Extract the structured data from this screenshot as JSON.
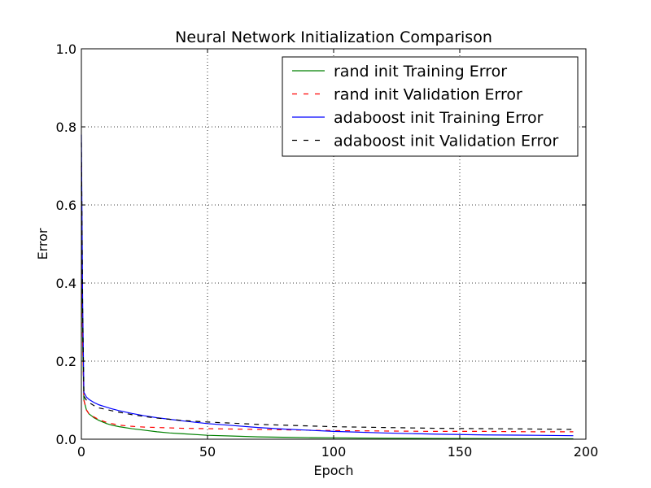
{
  "chart_data": {
    "type": "line",
    "title": "Neural Network Initialization Comparison",
    "xlabel": "Epoch",
    "ylabel": "Error",
    "xlim": [
      0,
      200
    ],
    "ylim": [
      0.0,
      1.0
    ],
    "xticks": [
      0,
      50,
      100,
      150,
      200
    ],
    "xtick_labels": [
      "0",
      "50",
      "100",
      "150",
      "200"
    ],
    "yticks": [
      0.0,
      0.2,
      0.4,
      0.6,
      0.8,
      1.0
    ],
    "ytick_labels": [
      "0.0",
      "0.2",
      "0.4",
      "0.6",
      "0.8",
      "1.0"
    ],
    "grid": true,
    "legend_position": "top-right",
    "series": [
      {
        "name": "rand init Training Error",
        "color": "#008000",
        "style": "solid",
        "x": [
          0,
          0.5,
          1,
          2,
          3,
          4,
          5,
          7,
          10,
          12,
          15,
          20,
          25,
          30,
          35,
          40,
          50,
          60,
          70,
          80,
          90,
          100,
          120,
          140,
          160,
          180,
          195
        ],
        "y": [
          0.65,
          0.25,
          0.1,
          0.075,
          0.065,
          0.06,
          0.055,
          0.048,
          0.04,
          0.036,
          0.032,
          0.027,
          0.023,
          0.019,
          0.016,
          0.014,
          0.01,
          0.008,
          0.006,
          0.005,
          0.004,
          0.0035,
          0.0025,
          0.002,
          0.0015,
          0.001,
          0.001
        ]
      },
      {
        "name": "rand init Validation Error",
        "color": "#ff0000",
        "style": "dashed",
        "x": [
          0,
          0.5,
          1,
          2,
          3,
          4,
          5,
          7,
          10,
          12,
          15,
          20,
          25,
          30,
          35,
          40,
          50,
          60,
          70,
          80,
          90,
          100,
          120,
          140,
          160,
          180,
          195
        ],
        "y": [
          0.7,
          0.25,
          0.1,
          0.075,
          0.065,
          0.06,
          0.057,
          0.05,
          0.043,
          0.04,
          0.036,
          0.033,
          0.031,
          0.03,
          0.029,
          0.028,
          0.027,
          0.026,
          0.025,
          0.024,
          0.023,
          0.022,
          0.021,
          0.02,
          0.02,
          0.019,
          0.019
        ]
      },
      {
        "name": "adaboost init Training Error",
        "color": "#0000ff",
        "style": "solid",
        "x": [
          0,
          0.5,
          1,
          2,
          3,
          4,
          5,
          7,
          10,
          12,
          15,
          20,
          25,
          30,
          35,
          40,
          50,
          60,
          70,
          80,
          90,
          100,
          120,
          140,
          160,
          180,
          195
        ],
        "y": [
          0.78,
          0.35,
          0.12,
          0.108,
          0.102,
          0.098,
          0.094,
          0.088,
          0.082,
          0.078,
          0.073,
          0.066,
          0.06,
          0.055,
          0.051,
          0.047,
          0.04,
          0.035,
          0.03,
          0.026,
          0.023,
          0.02,
          0.016,
          0.013,
          0.011,
          0.01,
          0.009
        ]
      },
      {
        "name": "adaboost init Validation Error",
        "color": "#000000",
        "style": "dashed",
        "x": [
          0,
          0.5,
          1,
          2,
          3,
          4,
          5,
          7,
          10,
          12,
          15,
          20,
          25,
          30,
          35,
          40,
          50,
          60,
          70,
          80,
          90,
          100,
          120,
          140,
          160,
          180,
          195
        ],
        "y": [
          0.76,
          0.33,
          0.11,
          0.1,
          0.094,
          0.09,
          0.086,
          0.08,
          0.076,
          0.073,
          0.069,
          0.063,
          0.058,
          0.054,
          0.051,
          0.048,
          0.044,
          0.041,
          0.038,
          0.036,
          0.034,
          0.032,
          0.03,
          0.028,
          0.027,
          0.026,
          0.025
        ]
      }
    ]
  }
}
